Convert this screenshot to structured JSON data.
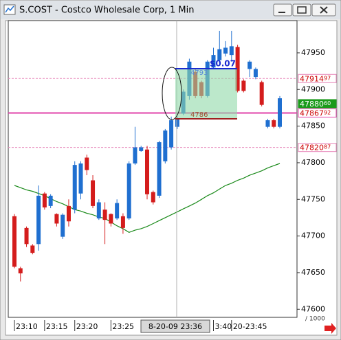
{
  "window_title": "S.COST - Costco Wholesale Corp, 1 Min",
  "chart_data": {
    "type": "candlestick",
    "categories": [
      "23:10",
      null,
      null,
      null,
      null,
      "23:15",
      null,
      null,
      null,
      null,
      "23:20",
      null,
      null,
      null,
      null,
      null,
      "23:25",
      null,
      null,
      null,
      null,
      null,
      null,
      null,
      null,
      null,
      null,
      null,
      null,
      null,
      null,
      null,
      null,
      "3:40",
      null,
      null,
      "20-23:45",
      null,
      null,
      null,
      null,
      null,
      null,
      null,
      null
    ],
    "open": [
      47727,
      47656,
      47711,
      47687,
      47689,
      47758,
      47741,
      47730,
      47699,
      47741,
      47736,
      47758,
      47807,
      47776,
      47724,
      47736,
      47730,
      47724,
      47727,
      47724,
      47799,
      47816,
      47818,
      47760,
      47755,
      47802,
      47821,
      47849,
      47867,
      47891,
      47924,
      47910,
      47891,
      47930,
      47940,
      47949,
      47947,
      47958,
      47912,
      47928,
      47917,
      47910,
      47849,
      47858,
      47849
    ],
    "high": [
      47730,
      47658,
      47713,
      47689,
      47769,
      47760,
      47757,
      47731,
      47731,
      47750,
      47802,
      47802,
      47811,
      47783,
      47750,
      47746,
      47731,
      47750,
      47731,
      47802,
      47849,
      47823,
      47823,
      47762,
      47830,
      47846,
      47863,
      47863,
      47900,
      47942,
      47928,
      47912,
      47940,
      47957,
      47980,
      47966,
      47980,
      47961,
      47914,
      47940,
      47930,
      47912,
      47860,
      47860,
      47891
    ],
    "low": [
      47656,
      47638,
      47685,
      47675,
      47680,
      47736,
      47738,
      47713,
      47696,
      47713,
      47731,
      47750,
      47783,
      47738,
      47722,
      47689,
      47713,
      47722,
      47703,
      47722,
      47797,
      47815,
      47750,
      47743,
      47752,
      47799,
      47818,
      47846,
      47865,
      47886,
      47888,
      47888,
      47889,
      47928,
      47936,
      47945,
      47938,
      47896,
      47896,
      47917,
      47914,
      47877,
      47847,
      47847,
      47847
    ],
    "close": [
      47658,
      47649,
      47689,
      47677,
      47755,
      47739,
      47755,
      47717,
      47729,
      47720,
      47797,
      47799,
      47790,
      47741,
      47746,
      47722,
      47717,
      47745,
      47711,
      47799,
      47821,
      47821,
      47757,
      47746,
      47828,
      47844,
      47858,
      47860,
      47897,
      47938,
      47891,
      47891,
      47938,
      47947,
      47955,
      47957,
      47959,
      47898,
      47898,
      47938,
      47928,
      47879,
      47858,
      47849,
      47888
    ],
    "up_color": "#1f6fd0",
    "down_color": "#d41c1c",
    "overlays": [
      {
        "type": "line",
        "color": "#1a8a1a",
        "values": [
          47769,
          47766,
          47763,
          47761,
          47758,
          47755,
          47751,
          47747,
          47744,
          47740,
          47736,
          47734,
          47731,
          47729,
          47726,
          47724,
          47719,
          47714,
          47710,
          47705,
          47708,
          47710,
          47713,
          47717,
          47721,
          47725,
          47729,
          47733,
          47737,
          47741,
          47745,
          47750,
          47755,
          47759,
          47764,
          47769,
          47772,
          47776,
          47779,
          47783,
          47786,
          47789,
          47793,
          47796,
          47799
        ]
      }
    ],
    "levels": [
      {
        "value": 47914.97,
        "label": "4791497",
        "color": "#e888bb",
        "style": "dashed",
        "label_color": "#cc0000",
        "label_fill": "#ffffff"
      },
      {
        "value": 47880.6,
        "label": "4788060",
        "color": "#1a9a1a",
        "style": "none",
        "label_color": "#ffffff",
        "label_fill": "#1a9a1a"
      },
      {
        "value": 47867.92,
        "label": "4786792",
        "color": "#e040a8",
        "style": "solid",
        "label_color": "#cc0000",
        "label_fill": "#ffffff"
      },
      {
        "value": 47820.87,
        "label": "4782087",
        "color": "#e888bb",
        "style": "dashed",
        "label_color": "#cc0000",
        "label_fill": "#ffffff"
      }
    ],
    "ylim": [
      47589,
      47994
    ],
    "yticks": [
      47600,
      47650,
      47700,
      47750,
      47800,
      47850,
      47900,
      47950
    ],
    "y_unit_note": "/ 1000",
    "cursor_label": "8-20-09 23:36",
    "annotation": {
      "change": "$0.07",
      "top_label": "4793",
      "bottom_label": "4786"
    }
  }
}
